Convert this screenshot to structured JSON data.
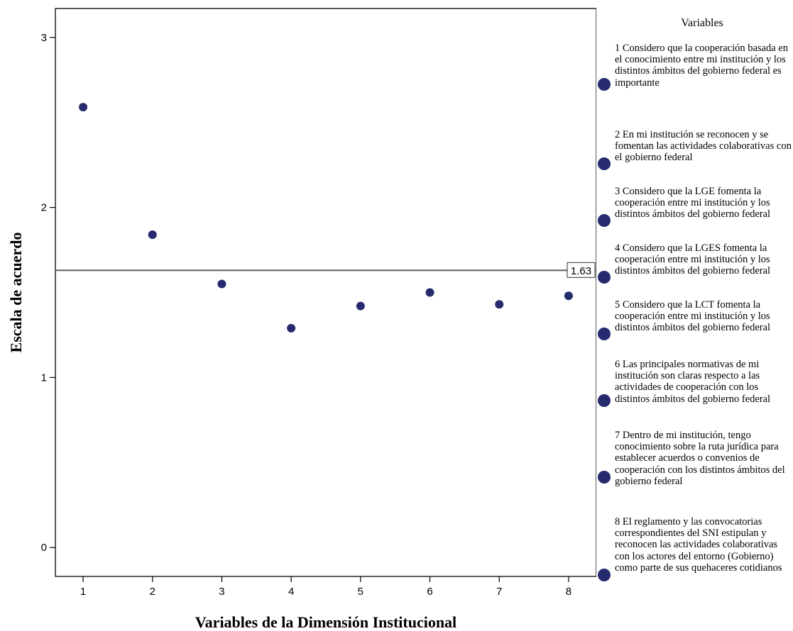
{
  "chart_data": {
    "type": "scatter",
    "xlabel": "Variables de la Dimensión Institucional",
    "ylabel": "Escala de acuerdo",
    "x_ticks": [
      "1",
      "2",
      "3",
      "4",
      "5",
      "6",
      "7",
      "8"
    ],
    "y_ticks": [
      "0",
      "1",
      "2",
      "3"
    ],
    "xlim": [
      0.6,
      8.4
    ],
    "ylim": [
      -0.17,
      3.17
    ],
    "x": [
      1,
      2,
      3,
      4,
      5,
      6,
      7,
      8
    ],
    "y": [
      2.59,
      1.84,
      1.55,
      1.29,
      1.42,
      1.5,
      1.43,
      1.48
    ],
    "reference_line": {
      "value": 1.63,
      "label": "1.63"
    },
    "marker_color": "#262a6e",
    "grid": false,
    "legend": {
      "title": "Variables",
      "placement": "right",
      "entries": [
        "1 Considero que la cooperación basada en el conocimiento entre mi institución y los distintos ámbitos del gobierno federal es importante",
        "2 En mi institución se reconocen y se fomentan las actividades colaborativas con el gobierno federal",
        "3 Considero que la LGE fomenta la cooperación entre mi institución y los distintos ámbitos del gobierno federal",
        "4 Considero que la LGES fomenta la cooperación entre mi institución y los distintos ámbitos del gobierno federal",
        "5 Considero que la LCT fomenta la cooperación entre mi institución y los distintos ámbitos del gobierno federal",
        "6 Las principales normativas de mi institución son claras respecto a las actividades de cooperación con los distintos ámbitos del gobierno federal",
        "7 Dentro de mi institución, tengo conocimiento sobre la ruta jurídica para establecer acuerdos o convenios de cooperación con los distintos ámbitos del gobierno federal",
        "8 El reglamento y las convocatorias correspondientes del SNI estipulan y reconocen las actividades colaborativas con los actores del entorno (Gobierno) como parte de sus quehaceres cotidianos"
      ]
    }
  }
}
